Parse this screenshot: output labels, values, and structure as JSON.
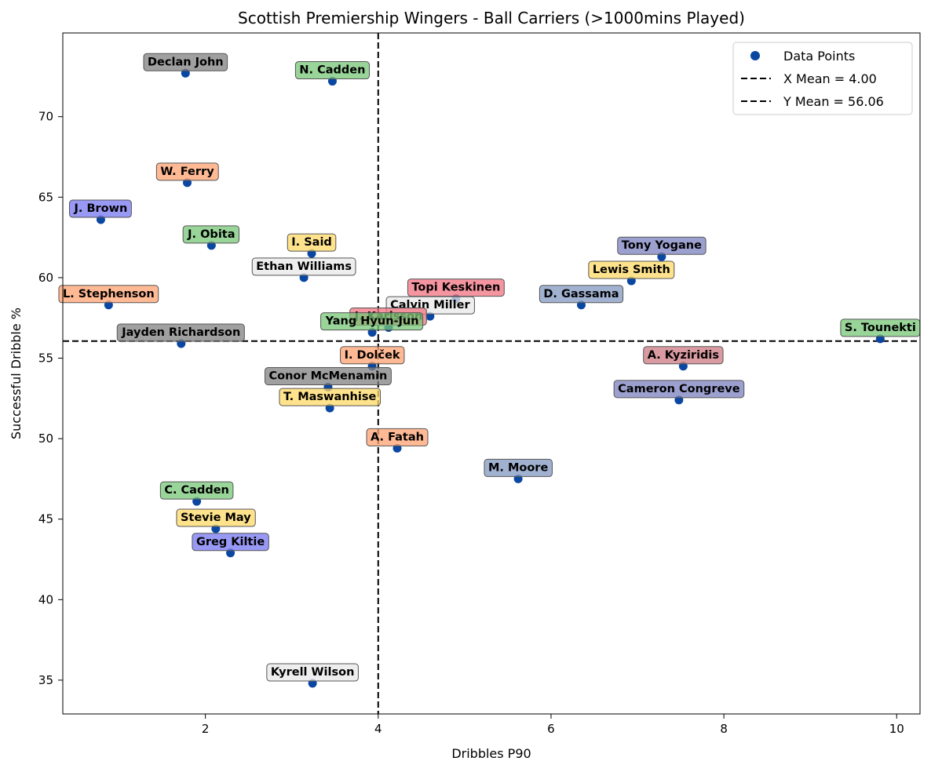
{
  "chart_data": {
    "type": "scatter",
    "title": "Scottish Premiership Wingers - Ball Carriers (>1000mins Played)",
    "xlabel": "Dribbles P90",
    "ylabel": "Successful Dribble %",
    "xlim": [
      0.35,
      10.27
    ],
    "ylim": [
      32.9,
      75.2
    ],
    "xticks": [
      2,
      4,
      6,
      8,
      10
    ],
    "yticks": [
      35,
      40,
      45,
      50,
      55,
      60,
      65,
      70
    ],
    "grid": false,
    "point_color": "#0a47a3",
    "x_mean": 4.0,
    "y_mean": 56.06,
    "legend": {
      "position": "top-right",
      "entries": [
        {
          "kind": "point",
          "label": "Data Points"
        },
        {
          "kind": "dash",
          "label": "X Mean = 4.00"
        },
        {
          "kind": "dash",
          "label": "Y Mean = 56.06"
        }
      ]
    },
    "points": [
      {
        "name": "Declan John",
        "x": 1.77,
        "y": 72.7,
        "color": "#808080"
      },
      {
        "name": "N. Cadden",
        "x": 3.47,
        "y": 72.2,
        "color": "#77c677"
      },
      {
        "name": "W. Ferry",
        "x": 1.79,
        "y": 65.9,
        "color": "#ffa270"
      },
      {
        "name": "J. Brown",
        "x": 0.79,
        "y": 63.6,
        "color": "#7676f2"
      },
      {
        "name": "J. Obita",
        "x": 2.07,
        "y": 62.0,
        "color": "#77c677"
      },
      {
        "name": "I. Said",
        "x": 3.23,
        "y": 61.5,
        "color": "#ffd966"
      },
      {
        "name": "Ethan Williams",
        "x": 3.14,
        "y": 60.0,
        "color": "#e8e8e8"
      },
      {
        "name": "Tony Yogane",
        "x": 7.28,
        "y": 61.3,
        "color": "#7b80bf"
      },
      {
        "name": "Lewis Smith",
        "x": 6.93,
        "y": 59.8,
        "color": "#ffd966"
      },
      {
        "name": "Topi Keskinen",
        "x": 4.9,
        "y": 58.7,
        "color": "#f07180"
      },
      {
        "name": "D. Gassama",
        "x": 6.35,
        "y": 58.3,
        "color": "#8198c2"
      },
      {
        "name": "L. Stephenson",
        "x": 0.88,
        "y": 58.3,
        "color": "#ffa270"
      },
      {
        "name": "Calvin Miller",
        "x": 4.6,
        "y": 57.6,
        "color": "#e8e8e8"
      },
      {
        "name": "J. Karlsson",
        "x": 4.12,
        "y": 56.9,
        "color": "#f07180"
      },
      {
        "name": "Yang Hyun-Jun",
        "x": 3.93,
        "y": 56.6,
        "color": "#77c677"
      },
      {
        "name": "Jayden Richardson",
        "x": 1.72,
        "y": 55.9,
        "color": "#808080"
      },
      {
        "name": "S. Tounekti",
        "x": 9.81,
        "y": 56.2,
        "color": "#77c677"
      },
      {
        "name": "I. Dolček",
        "x": 3.93,
        "y": 54.5,
        "color": "#ffa270"
      },
      {
        "name": "A. Kyziridis",
        "x": 7.53,
        "y": 54.5,
        "color": "#cc7a82"
      },
      {
        "name": "Conor McMenamin",
        "x": 3.42,
        "y": 53.2,
        "color": "#808080"
      },
      {
        "name": "T. Maswanhise",
        "x": 3.44,
        "y": 51.9,
        "color": "#ffd966"
      },
      {
        "name": "Cameron Congreve",
        "x": 7.48,
        "y": 52.4,
        "color": "#7b80bf"
      },
      {
        "name": "A. Fatah",
        "x": 4.22,
        "y": 49.4,
        "color": "#ffa270"
      },
      {
        "name": "M. Moore",
        "x": 5.62,
        "y": 47.5,
        "color": "#8198c2"
      },
      {
        "name": "C. Cadden",
        "x": 1.9,
        "y": 46.1,
        "color": "#77c677"
      },
      {
        "name": "Stevie May",
        "x": 2.12,
        "y": 44.4,
        "color": "#ffd966"
      },
      {
        "name": "Greg Kiltie",
        "x": 2.29,
        "y": 42.9,
        "color": "#7676f2"
      },
      {
        "name": "Kyrell Wilson",
        "x": 3.24,
        "y": 34.8,
        "color": "#e8e8e8"
      }
    ]
  }
}
